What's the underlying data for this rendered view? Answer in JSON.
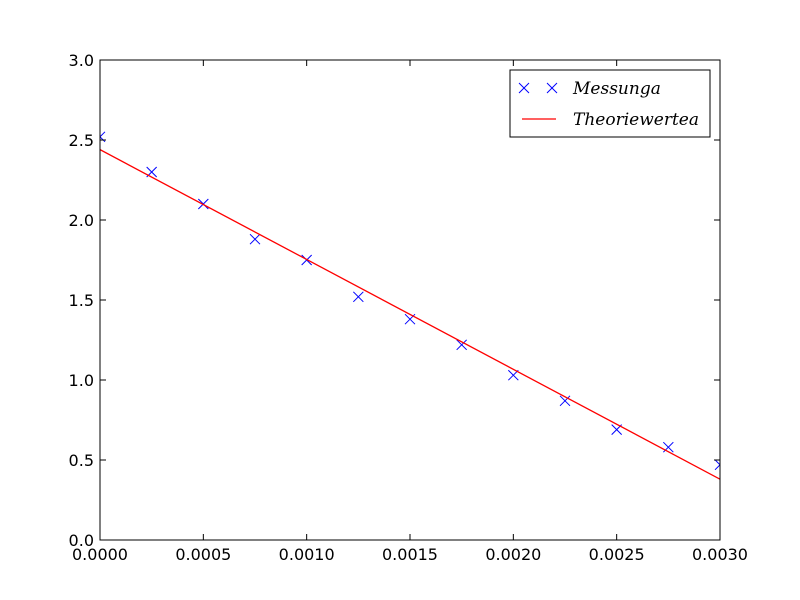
{
  "chart_data": {
    "type": "scatter",
    "title": "",
    "xlabel": "",
    "ylabel": "",
    "xlim": [
      0,
      0.003
    ],
    "ylim": [
      0,
      3.0
    ],
    "x_ticks": [
      "0.0000",
      "0.0005",
      "0.0010",
      "0.0015",
      "0.0020",
      "0.0025",
      "0.0030"
    ],
    "y_ticks": [
      "0.0",
      "0.5",
      "1.0",
      "1.5",
      "2.0",
      "2.5",
      "3.0"
    ],
    "grid": false,
    "legend_position": "top-right",
    "series": [
      {
        "name": "Messunga",
        "kind": "markers",
        "marker": "x",
        "color": "#0000ff",
        "x": [
          0.0,
          0.00025,
          0.0005,
          0.00075,
          0.001,
          0.00125,
          0.0015,
          0.00175,
          0.002,
          0.00225,
          0.0025,
          0.00275,
          0.003
        ],
        "y": [
          2.52,
          2.3,
          2.1,
          1.88,
          1.75,
          1.52,
          1.38,
          1.22,
          1.03,
          0.87,
          0.69,
          0.58,
          0.47
        ]
      },
      {
        "name": "Theoriewertea",
        "kind": "line",
        "color": "#ff0000",
        "x": [
          0.0,
          0.003
        ],
        "y": [
          2.44,
          0.38
        ]
      }
    ]
  }
}
